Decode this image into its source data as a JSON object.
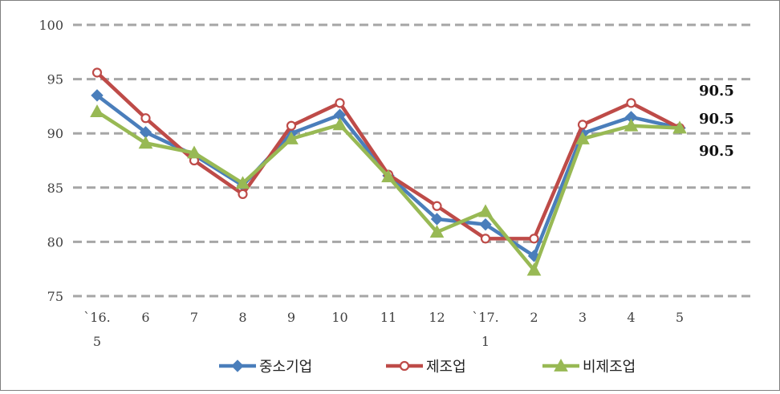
{
  "chart_data": {
    "type": "line",
    "categories": [
      [
        "`16.",
        "5"
      ],
      [
        "6"
      ],
      [
        "7"
      ],
      [
        "8"
      ],
      [
        "9"
      ],
      [
        "10"
      ],
      [
        "11"
      ],
      [
        "12"
      ],
      [
        "`17.",
        "1"
      ],
      [
        "2"
      ],
      [
        "3"
      ],
      [
        "4"
      ],
      [
        "5"
      ]
    ],
    "ylim": [
      75,
      100
    ],
    "yticks": [
      "75",
      "80",
      "85",
      "90",
      "95",
      "100"
    ],
    "grid": true,
    "legend_position": "bottom",
    "series": [
      {
        "name": "중소기업",
        "color": "#4a7ebb",
        "marker": "diamond",
        "values": [
          93.5,
          90.1,
          88.0,
          85.2,
          90.0,
          91.7,
          86.1,
          82.1,
          81.6,
          78.7,
          90.0,
          91.5,
          90.5
        ]
      },
      {
        "name": "제조업",
        "color": "#be4b48",
        "marker": "circle",
        "values": [
          95.6,
          91.4,
          87.5,
          84.4,
          90.7,
          92.8,
          86.2,
          83.3,
          80.3,
          80.3,
          90.8,
          92.8,
          90.5
        ]
      },
      {
        "name": "비제조업",
        "color": "#98b954",
        "marker": "triangle",
        "values": [
          92.0,
          89.1,
          88.2,
          85.4,
          89.5,
          90.8,
          86.0,
          80.9,
          82.8,
          77.4,
          89.5,
          90.7,
          90.5
        ]
      }
    ],
    "end_labels": [
      "90.5",
      "90.5",
      "90.5"
    ]
  }
}
